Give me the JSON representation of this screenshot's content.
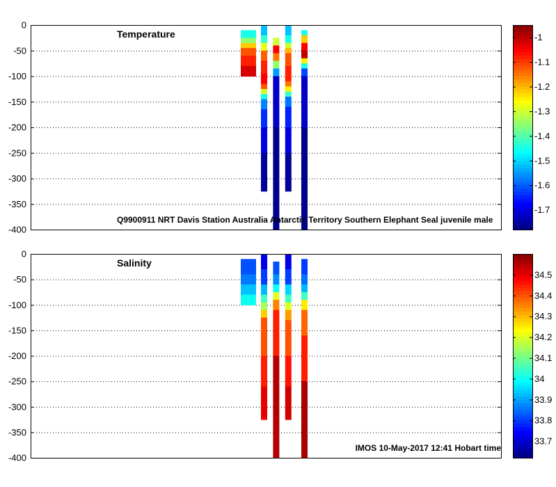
{
  "chart_data": [
    {
      "type": "heatmap",
      "title": "Temperature",
      "annotation": "Q9900911 NRT Davis Station Australia Antarctic Territory Southern Elephant Seal juvenile male",
      "ylim": [
        -400,
        0
      ],
      "yticks": [
        0,
        -50,
        -100,
        -150,
        -200,
        -250,
        -300,
        -350,
        -400
      ],
      "grid": true,
      "colorbar": {
        "min": -1.78,
        "max": -0.95,
        "ticks": [
          -1,
          -1.1,
          -1.2,
          -1.3,
          -1.4,
          -1.5,
          -1.6,
          -1.7
        ],
        "tick_labels": [
          "-1",
          "-1.1",
          "-1.2",
          "-1.3",
          "-1.4",
          "-1.5",
          "-1.6",
          "-1.7"
        ],
        "colormap": "jet"
      },
      "profiles": [
        {
          "x": 0.0,
          "segments": [
            {
              "from": -10,
              "to": -25,
              "value": -1.45
            },
            {
              "from": -25,
              "to": -35,
              "value": -1.35
            },
            {
              "from": -35,
              "to": -45,
              "value": -1.22
            },
            {
              "from": -45,
              "to": -60,
              "value": -1.12
            },
            {
              "from": -60,
              "to": -80,
              "value": -1.08
            },
            {
              "from": -80,
              "to": -100,
              "value": -1.02
            }
          ]
        },
        {
          "x": 1.0,
          "segments": [
            {
              "from": 0,
              "to": -20,
              "value": -1.52
            },
            {
              "from": -20,
              "to": -35,
              "value": -1.43
            },
            {
              "from": -35,
              "to": -50,
              "value": -1.28
            },
            {
              "from": -50,
              "to": -70,
              "value": -1.13
            },
            {
              "from": -70,
              "to": -95,
              "value": -1.08
            },
            {
              "from": -95,
              "to": -115,
              "value": -1.05
            },
            {
              "from": -115,
              "to": -125,
              "value": -1.12
            },
            {
              "from": -125,
              "to": -135,
              "value": -1.3
            },
            {
              "from": -135,
              "to": -145,
              "value": -1.45
            },
            {
              "from": -145,
              "to": -165,
              "value": -1.57
            },
            {
              "from": -165,
              "to": -200,
              "value": -1.64
            },
            {
              "from": -200,
              "to": -250,
              "value": -1.7
            },
            {
              "from": -250,
              "to": -325,
              "value": -1.76
            }
          ]
        },
        {
          "x": 1.6,
          "segments": [
            {
              "from": -25,
              "to": -40,
              "value": -1.3
            },
            {
              "from": -40,
              "to": -55,
              "value": -1.05
            },
            {
              "from": -55,
              "to": -70,
              "value": -1.15
            },
            {
              "from": -70,
              "to": -85,
              "value": -1.35
            },
            {
              "from": -85,
              "to": -100,
              "value": -1.55
            },
            {
              "from": -100,
              "to": -200,
              "value": -1.72
            },
            {
              "from": -200,
              "to": -400,
              "value": -1.77
            }
          ]
        },
        {
          "x": 2.2,
          "segments": [
            {
              "from": 0,
              "to": -20,
              "value": -1.52
            },
            {
              "from": -20,
              "to": -35,
              "value": -1.45
            },
            {
              "from": -35,
              "to": -45,
              "value": -1.3
            },
            {
              "from": -45,
              "to": -55,
              "value": -1.2
            },
            {
              "from": -55,
              "to": -80,
              "value": -1.12
            },
            {
              "from": -80,
              "to": -110,
              "value": -1.08
            },
            {
              "from": -110,
              "to": -120,
              "value": -1.15
            },
            {
              "from": -120,
              "to": -130,
              "value": -1.25
            },
            {
              "from": -130,
              "to": -140,
              "value": -1.42
            },
            {
              "from": -140,
              "to": -160,
              "value": -1.58
            },
            {
              "from": -160,
              "to": -200,
              "value": -1.65
            },
            {
              "from": -200,
              "to": -250,
              "value": -1.7
            },
            {
              "from": -250,
              "to": -325,
              "value": -1.76
            }
          ]
        },
        {
          "x": 3.0,
          "segments": [
            {
              "from": -10,
              "to": -20,
              "value": -1.45
            },
            {
              "from": -20,
              "to": -35,
              "value": -1.22
            },
            {
              "from": -35,
              "to": -50,
              "value": -1.05
            },
            {
              "from": -50,
              "to": -65,
              "value": -1.0
            },
            {
              "from": -65,
              "to": -75,
              "value": -1.25
            },
            {
              "from": -75,
              "to": -85,
              "value": -1.45
            },
            {
              "from": -85,
              "to": -100,
              "value": -1.62
            },
            {
              "from": -100,
              "to": -200,
              "value": -1.72
            },
            {
              "from": -200,
              "to": -400,
              "value": -1.77
            }
          ]
        }
      ]
    },
    {
      "type": "heatmap",
      "title": "Salinity",
      "annotation": "IMOS 10-May-2017 12:41 Hobart time",
      "ylim": [
        -400,
        0
      ],
      "yticks": [
        0,
        -50,
        -100,
        -150,
        -200,
        -250,
        -300,
        -350,
        -400
      ],
      "grid": true,
      "colorbar": {
        "min": 33.62,
        "max": 34.6,
        "ticks": [
          34.5,
          34.4,
          34.3,
          34.2,
          34.1,
          34,
          33.9,
          33.8,
          33.7
        ],
        "tick_labels": [
          "34.5",
          "34.4",
          "34.3",
          "34.2",
          "34.1",
          "34",
          "33.9",
          "33.8",
          "33.7"
        ],
        "colormap": "jet"
      },
      "profiles": [
        {
          "x": 0.0,
          "segments": [
            {
              "from": -10,
              "to": -40,
              "value": 33.82
            },
            {
              "from": -40,
              "to": -60,
              "value": 33.86
            },
            {
              "from": -60,
              "to": -80,
              "value": 33.93
            },
            {
              "from": -80,
              "to": -100,
              "value": 34.0
            }
          ]
        },
        {
          "x": 1.0,
          "segments": [
            {
              "from": 0,
              "to": -30,
              "value": 33.72
            },
            {
              "from": -30,
              "to": -60,
              "value": 33.8
            },
            {
              "from": -60,
              "to": -80,
              "value": 33.92
            },
            {
              "from": -80,
              "to": -95,
              "value": 34.05
            },
            {
              "from": -95,
              "to": -110,
              "value": 34.15
            },
            {
              "from": -110,
              "to": -125,
              "value": 34.28
            },
            {
              "from": -125,
              "to": -200,
              "value": 34.4
            },
            {
              "from": -200,
              "to": -260,
              "value": 34.45
            },
            {
              "from": -260,
              "to": -325,
              "value": 34.5
            }
          ]
        },
        {
          "x": 1.6,
          "segments": [
            {
              "from": -15,
              "to": -40,
              "value": 33.82
            },
            {
              "from": -40,
              "to": -60,
              "value": 33.88
            },
            {
              "from": -60,
              "to": -75,
              "value": 34.0
            },
            {
              "from": -75,
              "to": -90,
              "value": 34.2
            },
            {
              "from": -90,
              "to": -110,
              "value": 34.35
            },
            {
              "from": -110,
              "to": -200,
              "value": 34.45
            },
            {
              "from": -200,
              "to": -400,
              "value": 34.55
            }
          ]
        },
        {
          "x": 2.2,
          "segments": [
            {
              "from": 0,
              "to": -30,
              "value": 33.72
            },
            {
              "from": -30,
              "to": -60,
              "value": 33.8
            },
            {
              "from": -60,
              "to": -80,
              "value": 33.95
            },
            {
              "from": -80,
              "to": -95,
              "value": 34.05
            },
            {
              "from": -95,
              "to": -110,
              "value": 34.2
            },
            {
              "from": -110,
              "to": -130,
              "value": 34.33
            },
            {
              "from": -130,
              "to": -200,
              "value": 34.4
            },
            {
              "from": -200,
              "to": -260,
              "value": 34.46
            },
            {
              "from": -260,
              "to": -325,
              "value": 34.52
            }
          ]
        },
        {
          "x": 3.0,
          "segments": [
            {
              "from": -10,
              "to": -40,
              "value": 33.8
            },
            {
              "from": -40,
              "to": -60,
              "value": 33.85
            },
            {
              "from": -60,
              "to": -75,
              "value": 33.92
            },
            {
              "from": -75,
              "to": -90,
              "value": 34.05
            },
            {
              "from": -90,
              "to": -110,
              "value": 34.25
            },
            {
              "from": -110,
              "to": -160,
              "value": 34.38
            },
            {
              "from": -160,
              "to": -250,
              "value": 34.45
            },
            {
              "from": -250,
              "to": -400,
              "value": 34.56
            }
          ]
        }
      ]
    }
  ]
}
